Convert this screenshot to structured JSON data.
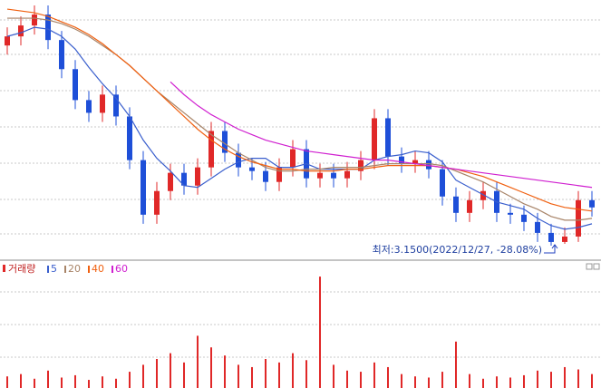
{
  "chart_data": [
    {
      "type": "candlestick",
      "ylim": [
        3.08,
        4.5
      ],
      "up_color": "#e02828",
      "down_color": "#1e4fd8",
      "open": [
        4.25,
        4.3,
        4.36,
        4.42,
        4.28,
        4.12,
        3.95,
        3.88,
        3.98,
        3.86,
        3.62,
        3.32,
        3.45,
        3.55,
        3.48,
        3.58,
        3.78,
        3.66,
        3.58,
        3.56,
        3.5,
        3.58,
        3.68,
        3.52,
        3.55,
        3.52,
        3.56,
        3.62,
        3.85,
        3.64,
        3.6,
        3.62,
        3.57,
        3.42,
        3.33,
        3.4,
        3.45,
        3.33,
        3.32,
        3.28,
        3.22,
        3.17,
        3.2,
        3.4
      ],
      "high": [
        4.35,
        4.41,
        4.47,
        4.47,
        4.33,
        4.17,
        4.0,
        4.03,
        4.03,
        3.91,
        3.67,
        3.5,
        3.6,
        3.6,
        3.63,
        3.83,
        3.83,
        3.71,
        3.63,
        3.61,
        3.63,
        3.73,
        3.73,
        3.6,
        3.6,
        3.61,
        3.67,
        3.9,
        3.9,
        3.69,
        3.67,
        3.67,
        3.62,
        3.47,
        3.45,
        3.5,
        3.5,
        3.38,
        3.37,
        3.33,
        3.27,
        3.25,
        3.45,
        3.45
      ],
      "low": [
        4.2,
        4.25,
        4.31,
        4.23,
        4.07,
        3.9,
        3.83,
        3.83,
        3.81,
        3.57,
        3.27,
        3.27,
        3.4,
        3.43,
        3.43,
        3.53,
        3.61,
        3.53,
        3.51,
        3.45,
        3.45,
        3.53,
        3.47,
        3.47,
        3.47,
        3.47,
        3.51,
        3.57,
        3.59,
        3.55,
        3.55,
        3.52,
        3.37,
        3.28,
        3.28,
        3.35,
        3.28,
        3.27,
        3.23,
        3.17,
        3.15,
        3.16,
        3.17,
        3.31
      ],
      "close": [
        4.3,
        4.36,
        4.42,
        4.28,
        4.12,
        3.95,
        3.88,
        3.98,
        3.86,
        3.62,
        3.32,
        3.45,
        3.55,
        3.48,
        3.58,
        3.78,
        3.66,
        3.58,
        3.56,
        3.5,
        3.58,
        3.68,
        3.52,
        3.55,
        3.52,
        3.56,
        3.62,
        3.85,
        3.64,
        3.6,
        3.62,
        3.57,
        3.42,
        3.33,
        3.4,
        3.45,
        3.33,
        3.32,
        3.28,
        3.22,
        3.17,
        3.2,
        3.4,
        3.36
      ],
      "series": [
        {
          "name": "5",
          "color": "#3a5fcd",
          "values": [
            4.3,
            4.32,
            4.35,
            4.34,
            4.3,
            4.23,
            4.13,
            4.04,
            3.96,
            3.86,
            3.73,
            3.63,
            3.56,
            3.48,
            3.47,
            3.52,
            3.57,
            3.61,
            3.63,
            3.63,
            3.58,
            3.58,
            3.6,
            3.57,
            3.57,
            3.57,
            3.57,
            3.62,
            3.64,
            3.65,
            3.67,
            3.66,
            3.61,
            3.51,
            3.47,
            3.43,
            3.39,
            3.37,
            3.35,
            3.3,
            3.26,
            3.24,
            3.25,
            3.27
          ]
        },
        {
          "name": "20",
          "color": "#a88468",
          "values": [
            4.4,
            4.4,
            4.4,
            4.39,
            4.37,
            4.34,
            4.3,
            4.25,
            4.2,
            4.14,
            4.07,
            4.0,
            3.94,
            3.88,
            3.82,
            3.76,
            3.71,
            3.66,
            3.62,
            3.58,
            3.56,
            3.56,
            3.57,
            3.57,
            3.58,
            3.58,
            3.58,
            3.59,
            3.6,
            3.6,
            3.6,
            3.6,
            3.59,
            3.56,
            3.53,
            3.5,
            3.46,
            3.42,
            3.38,
            3.35,
            3.31,
            3.29,
            3.29,
            3.3
          ]
        },
        {
          "name": "40",
          "color": "#f06010",
          "values": [
            4.45,
            4.44,
            4.43,
            4.41,
            4.38,
            4.35,
            4.31,
            4.26,
            4.2,
            4.14,
            4.07,
            4.0,
            3.93,
            3.86,
            3.79,
            3.73,
            3.68,
            3.64,
            3.61,
            3.59,
            3.57,
            3.57,
            3.56,
            3.56,
            3.56,
            3.57,
            3.57,
            3.58,
            3.59,
            3.59,
            3.59,
            3.59,
            3.58,
            3.57,
            3.55,
            3.53,
            3.5,
            3.47,
            3.44,
            3.41,
            3.38,
            3.36,
            3.35,
            3.34
          ]
        },
        {
          "name": "60",
          "color": "#d020d0",
          "values": [
            null,
            null,
            null,
            null,
            null,
            null,
            null,
            null,
            null,
            null,
            null,
            null,
            4.05,
            3.98,
            3.92,
            3.87,
            3.83,
            3.79,
            3.76,
            3.73,
            3.71,
            3.69,
            3.67,
            3.66,
            3.65,
            3.64,
            3.63,
            3.62,
            3.62,
            3.61,
            3.6,
            3.59,
            3.58,
            3.57,
            3.56,
            3.55,
            3.54,
            3.53,
            3.52,
            3.51,
            3.5,
            3.49,
            3.48,
            3.47
          ]
        }
      ],
      "annotation": "최저:3.1500(2022/12/27, -28.08%)"
    },
    {
      "type": "bar",
      "title": "거래량",
      "color": "#e02828",
      "ylim": [
        0,
        100
      ],
      "values": [
        10,
        12,
        8,
        15,
        9,
        11,
        7,
        10,
        8,
        14,
        20,
        25,
        30,
        22,
        45,
        35,
        28,
        20,
        18,
        25,
        22,
        30,
        24,
        96,
        20,
        15,
        14,
        22,
        18,
        12,
        10,
        9,
        14,
        40,
        12,
        8,
        10,
        9,
        11,
        15,
        14,
        18,
        16,
        12
      ]
    }
  ]
}
